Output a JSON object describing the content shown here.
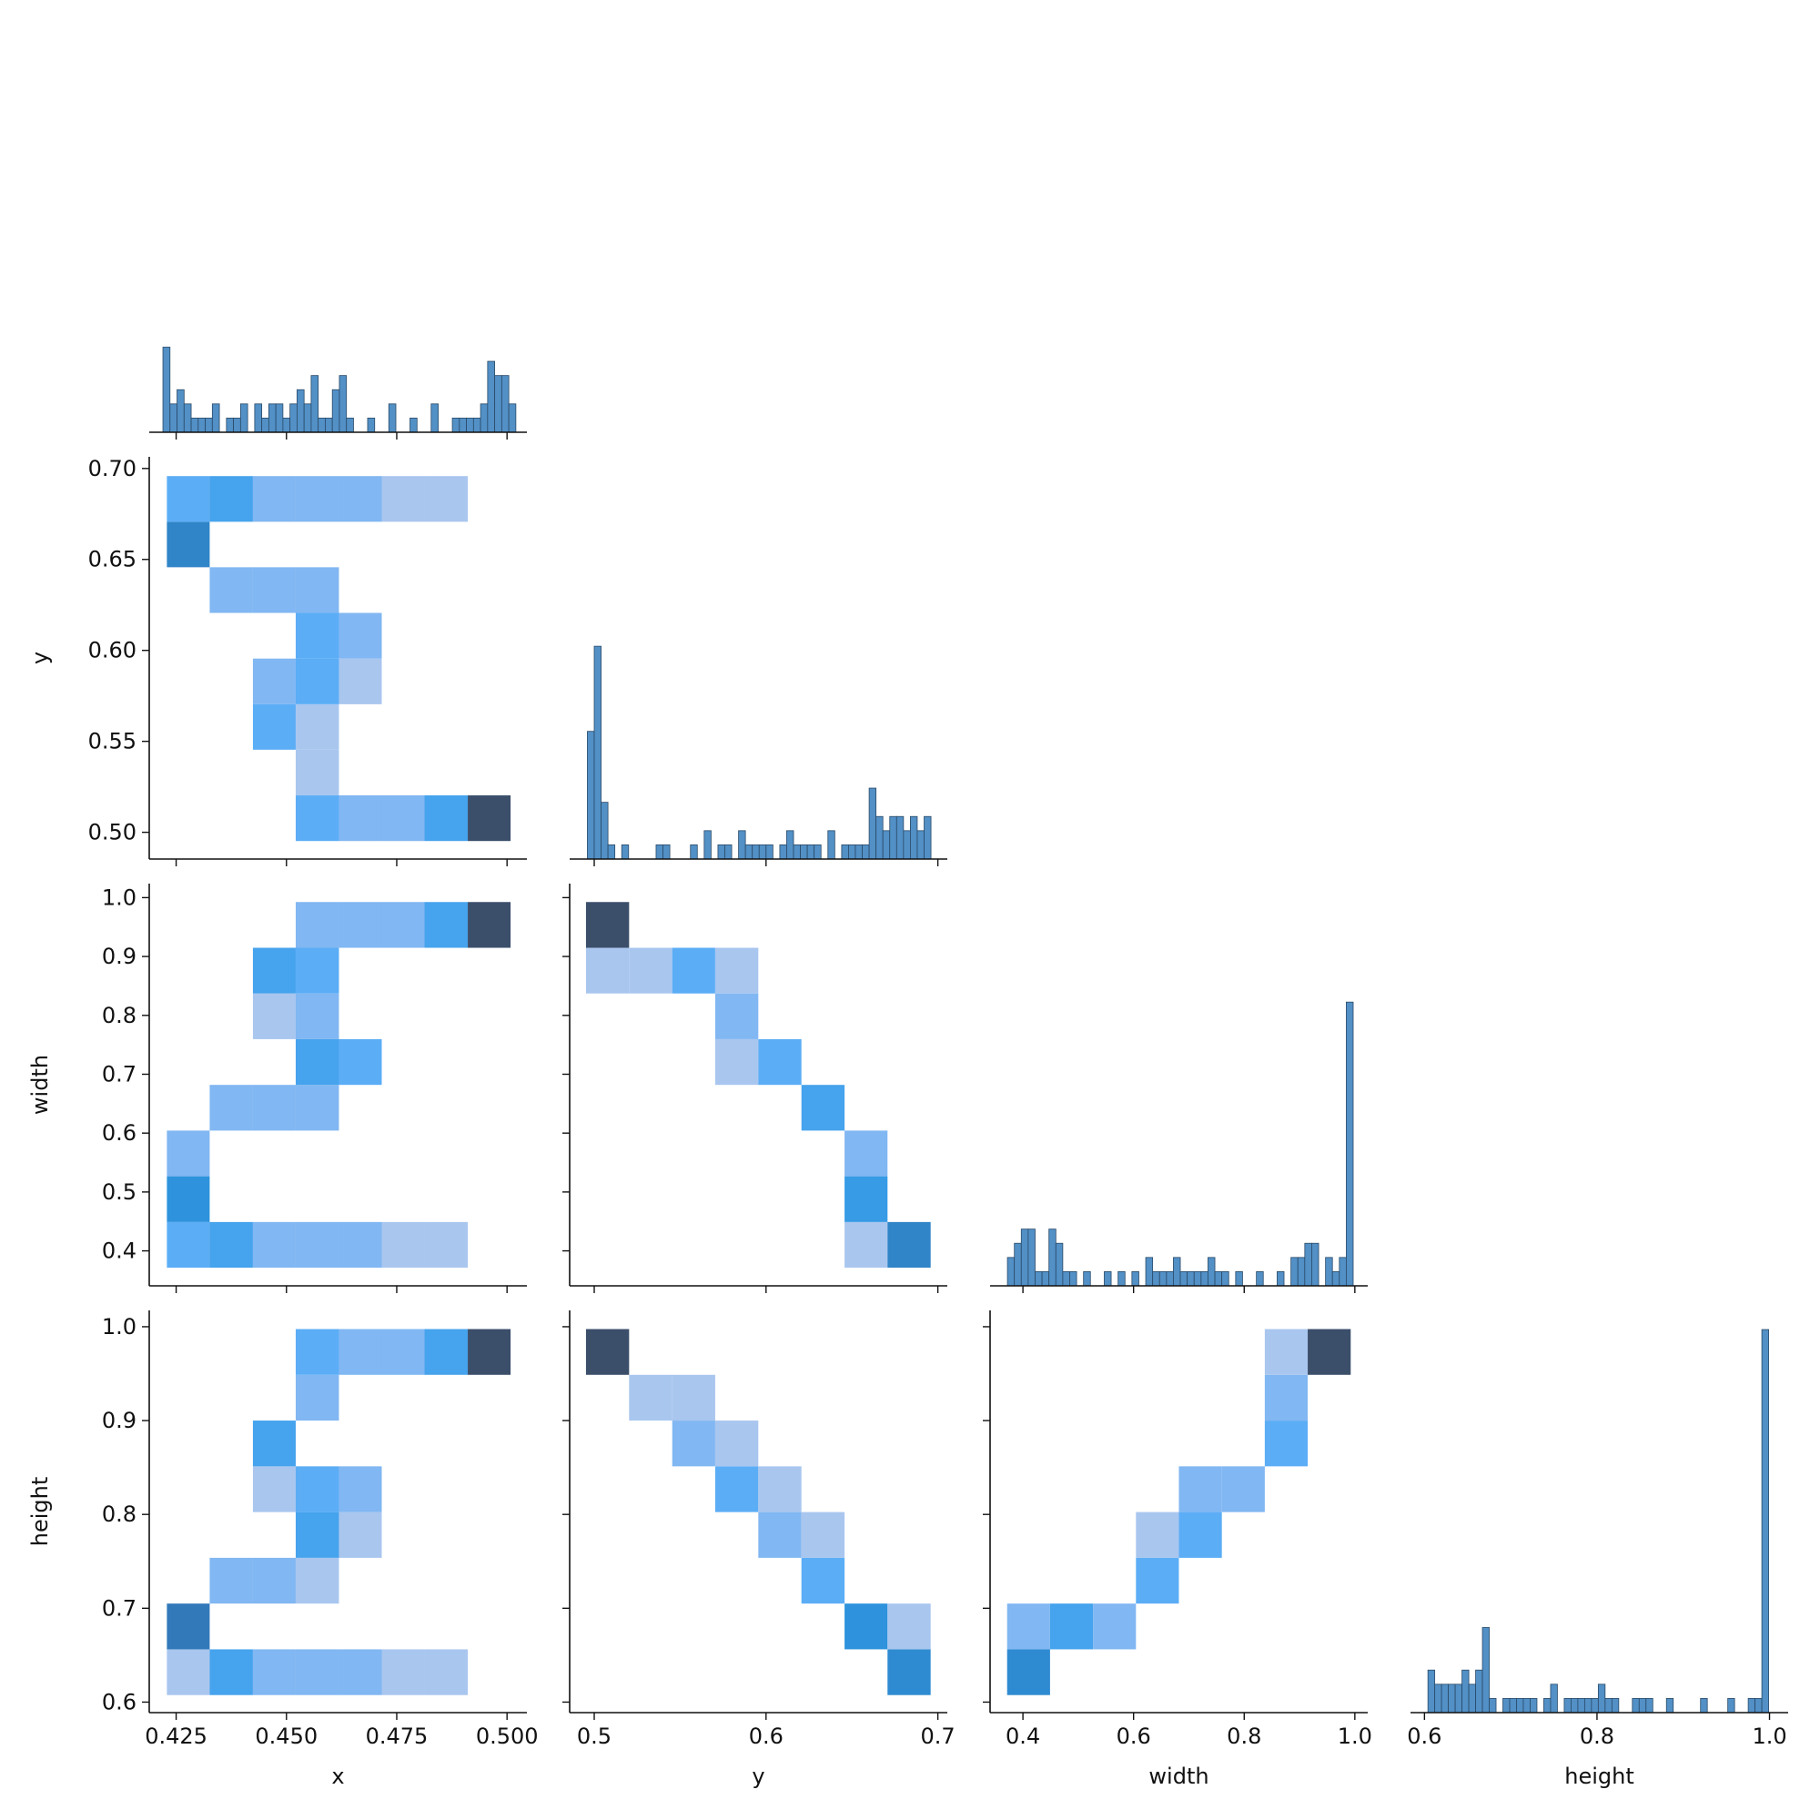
{
  "chart_data": [
    {
      "type": "histogram",
      "color": "#5290c6",
      "edgecolor": "#2a4a68",
      "bins": [
        0.422,
        0.4236,
        0.4252,
        0.4268,
        0.4284,
        0.43,
        0.4316,
        0.4332,
        0.4348,
        0.4364,
        0.438,
        0.4396,
        0.4412,
        0.4428,
        0.4444,
        0.446,
        0.4476,
        0.4492,
        0.4508,
        0.4524,
        0.454,
        0.4556,
        0.4572,
        0.4588,
        0.4604,
        0.462,
        0.4636,
        0.4652,
        0.4668,
        0.4684,
        0.47,
        0.4716,
        0.4732,
        0.4748,
        0.4764,
        0.478,
        0.4796,
        0.4812,
        0.4828,
        0.4844,
        0.486,
        0.4876,
        0.4892,
        0.4908,
        0.4924,
        0.494,
        0.4956,
        0.4972,
        0.4988,
        0.5004,
        0.502
      ],
      "counts": [
        6,
        2,
        3,
        2,
        1,
        1,
        1,
        2,
        0,
        1,
        1,
        2,
        0,
        2,
        1,
        2,
        2,
        1,
        2,
        3,
        2,
        4,
        1,
        1,
        3,
        4,
        1,
        0,
        0,
        1,
        0,
        0,
        2,
        0,
        0,
        1,
        0,
        0,
        2,
        0,
        0,
        1,
        1,
        1,
        1,
        2,
        5,
        4,
        4,
        2
      ],
      "xlim": [
        0.4189,
        0.5045
      ],
      "ylim": [
        0,
        28.35
      ],
      "xticks": [
        0.425,
        {
          "value": 0.45,
          "label": "0.450"
        },
        0.475,
        {
          "value": 0.5,
          "label": "0.500"
        }
      ]
    },
    {
      "type": "hist2d",
      "ylabel": "y",
      "color_scale": "log",
      "cmap": [
        "#a9c6ef",
        "#8cbaf1",
        "#56acf6",
        "#2e96e0",
        "#3279b8",
        "#3b4f6b"
      ],
      "xbins": [
        0.4229,
        0.4326,
        0.4424,
        0.4521,
        0.4619,
        0.4716,
        0.4813,
        0.4911,
        0.5008
      ],
      "ybins": [
        0.4952,
        0.5203,
        0.5454,
        0.5704,
        0.5955,
        0.6206,
        0.6457,
        0.6707,
        0.6958
      ],
      "counts": [
        [
          0,
          0,
          0,
          3,
          2,
          2,
          4,
          18
        ],
        [
          0,
          0,
          0,
          1,
          0,
          0,
          0,
          0
        ],
        [
          0,
          0,
          3,
          1,
          0,
          0,
          0,
          0
        ],
        [
          0,
          0,
          2,
          3,
          1,
          0,
          0,
          0
        ],
        [
          0,
          0,
          0,
          3,
          2,
          0,
          0,
          0
        ],
        [
          0,
          2,
          2,
          2,
          0,
          0,
          0,
          0
        ],
        [
          8,
          0,
          0,
          0,
          0,
          0,
          0,
          0
        ],
        [
          3,
          4,
          2,
          2,
          2,
          1,
          1,
          0
        ]
      ],
      "xlim": [
        0.4189,
        0.5045
      ],
      "ylim": [
        0.4853,
        0.7064
      ],
      "xticks": [
        0.425,
        {
          "value": 0.45,
          "label": "0.450"
        },
        0.475,
        {
          "value": 0.5,
          "label": "0.500"
        }
      ],
      "yticks": [
        {
          "value": 0.5,
          "label": "0.50"
        },
        0.55,
        {
          "value": 0.6,
          "label": "0.60"
        },
        0.65,
        {
          "value": 0.7,
          "label": "0.70"
        }
      ]
    },
    {
      "type": "histogram",
      "color": "#5290c6",
      "edgecolor": "#2a4a68",
      "bins": [
        0.496,
        0.5,
        0.504,
        0.508,
        0.512,
        0.516,
        0.52,
        0.524,
        0.528,
        0.532,
        0.536,
        0.54,
        0.544,
        0.548,
        0.552,
        0.556,
        0.56,
        0.564,
        0.568,
        0.572,
        0.576,
        0.58,
        0.584,
        0.588,
        0.592,
        0.596,
        0.6,
        0.604,
        0.608,
        0.612,
        0.616,
        0.62,
        0.624,
        0.628,
        0.632,
        0.636,
        0.64,
        0.644,
        0.648,
        0.652,
        0.656,
        0.66,
        0.664,
        0.668,
        0.672,
        0.676,
        0.68,
        0.684,
        0.688,
        0.692,
        0.696
      ],
      "counts": [
        9,
        15,
        4,
        1,
        0,
        1,
        0,
        0,
        0,
        0,
        1,
        1,
        0,
        0,
        0,
        1,
        0,
        2,
        0,
        1,
        1,
        0,
        2,
        1,
        1,
        1,
        1,
        0,
        1,
        2,
        1,
        1,
        1,
        1,
        0,
        2,
        0,
        1,
        1,
        1,
        1,
        5,
        3,
        2,
        3,
        3,
        2,
        3,
        2,
        3
      ],
      "xlim": [
        0.4857,
        0.7055
      ],
      "ylim": [
        0,
        28.35
      ],
      "xticks": [
        0.5,
        0.6,
        0.7
      ]
    },
    {
      "type": "hist2d",
      "ylabel": "width",
      "color_scale": "log",
      "cmap": [
        "#a9c6ef",
        "#8cbaf1",
        "#56acf6",
        "#2e96e0",
        "#3279b8",
        "#3b4f6b"
      ],
      "xbins": [
        0.4229,
        0.4326,
        0.4424,
        0.4521,
        0.4619,
        0.4716,
        0.4813,
        0.4911,
        0.5008
      ],
      "ybins": [
        0.3714,
        0.449,
        0.5267,
        0.6043,
        0.6819,
        0.7596,
        0.8372,
        0.9148,
        0.9925
      ],
      "counts": [
        [
          3,
          4,
          2,
          2,
          2,
          1,
          1,
          0
        ],
        [
          6,
          0,
          0,
          0,
          0,
          0,
          0,
          0
        ],
        [
          2,
          0,
          0,
          0,
          0,
          0,
          0,
          0
        ],
        [
          0,
          2,
          2,
          2,
          0,
          0,
          0,
          0
        ],
        [
          0,
          0,
          0,
          4,
          3,
          0,
          0,
          0
        ],
        [
          0,
          0,
          1,
          2,
          0,
          0,
          0,
          0
        ],
        [
          0,
          0,
          4,
          3,
          0,
          0,
          0,
          0
        ],
        [
          0,
          0,
          0,
          2,
          2,
          2,
          4,
          18
        ]
      ],
      "xlim": [
        0.4189,
        0.5045
      ],
      "ylim": [
        0.3406,
        1.0238
      ],
      "xticks": [
        0.425,
        {
          "value": 0.45,
          "label": "0.450"
        },
        0.475,
        {
          "value": 0.5,
          "label": "0.500"
        }
      ],
      "yticks": [
        0.4,
        0.5,
        0.6,
        0.7,
        0.8,
        0.9,
        {
          "value": 1,
          "label": "1.0"
        }
      ]
    },
    {
      "type": "hist2d",
      "color_scale": "log",
      "cmap": [
        "#a9c6ef",
        "#8cbaf1",
        "#56acf6",
        "#2e96e0",
        "#3279b8",
        "#3b4f6b"
      ],
      "xbins": [
        0.4952,
        0.5203,
        0.5454,
        0.5704,
        0.5955,
        0.6206,
        0.6457,
        0.6707,
        0.6958
      ],
      "ybins": [
        0.3714,
        0.449,
        0.5267,
        0.6043,
        0.6819,
        0.7596,
        0.8372,
        0.9148,
        0.9925
      ],
      "counts": [
        [
          0,
          0,
          0,
          0,
          0,
          0,
          1,
          8
        ],
        [
          0,
          0,
          0,
          0,
          0,
          0,
          5,
          0
        ],
        [
          0,
          0,
          0,
          0,
          0,
          0,
          2,
          0
        ],
        [
          0,
          0,
          0,
          0,
          0,
          4,
          0,
          0
        ],
        [
          0,
          0,
          0,
          1,
          3,
          0,
          0,
          0
        ],
        [
          0,
          0,
          0,
          2,
          0,
          0,
          0,
          0
        ],
        [
          1,
          1,
          3,
          1,
          0,
          0,
          0,
          0
        ],
        [
          18,
          0,
          0,
          0,
          0,
          0,
          0,
          0
        ]
      ],
      "xlim": [
        0.4857,
        0.7055
      ],
      "ylim": [
        0.3406,
        1.0238
      ],
      "xticks": [
        0.5,
        0.6,
        0.7
      ],
      "yticks": [
        0.4,
        0.5,
        0.6,
        0.7,
        0.8,
        0.9,
        {
          "value": 1,
          "label": "1.0"
        }
      ]
    },
    {
      "type": "histogram",
      "color": "#5290c6",
      "edgecolor": "#2a4a68",
      "bins": [
        0.372,
        0.3845,
        0.397,
        0.4095,
        0.422,
        0.4345,
        0.447,
        0.4595,
        0.472,
        0.4845,
        0.497,
        0.5095,
        0.522,
        0.5345,
        0.547,
        0.5595,
        0.572,
        0.5845,
        0.597,
        0.6095,
        0.622,
        0.6345,
        0.647,
        0.6595,
        0.672,
        0.6845,
        0.697,
        0.7095,
        0.722,
        0.7345,
        0.747,
        0.7595,
        0.772,
        0.7845,
        0.797,
        0.8095,
        0.822,
        0.8345,
        0.847,
        0.8595,
        0.872,
        0.8845,
        0.897,
        0.9095,
        0.922,
        0.9345,
        0.947,
        0.9595,
        0.972,
        0.9845,
        0.997
      ],
      "counts": [
        2,
        3,
        4,
        4,
        1,
        1,
        4,
        3,
        1,
        1,
        0,
        1,
        0,
        0,
        1,
        0,
        1,
        0,
        1,
        0,
        2,
        1,
        1,
        1,
        2,
        1,
        1,
        1,
        1,
        2,
        1,
        1,
        0,
        1,
        0,
        0,
        1,
        0,
        0,
        1,
        0,
        2,
        2,
        3,
        3,
        0,
        2,
        1,
        2,
        20
      ],
      "xlim": [
        0.3406,
        1.0233
      ],
      "ylim": [
        0,
        28.35
      ],
      "xticks": [
        0.4,
        0.6,
        0.8,
        {
          "value": 1,
          "label": "1.0"
        }
      ]
    },
    {
      "type": "hist2d",
      "xlabel": "x",
      "ylabel": "height",
      "color_scale": "log",
      "cmap": [
        "#a9c6ef",
        "#8cbaf1",
        "#56acf6",
        "#2e96e0",
        "#3279b8",
        "#3b4f6b"
      ],
      "xbins": [
        0.4229,
        0.4326,
        0.4424,
        0.4521,
        0.4619,
        0.4716,
        0.4813,
        0.4911,
        0.5008
      ],
      "ybins": [
        0.6075,
        0.65625,
        0.705,
        0.75375,
        0.8025,
        0.85125,
        0.9,
        0.94875,
        0.9975
      ],
      "counts": [
        [
          1,
          4,
          2,
          2,
          2,
          1,
          1,
          0
        ],
        [
          10,
          0,
          0,
          0,
          0,
          0,
          0,
          0
        ],
        [
          0,
          2,
          2,
          1,
          0,
          0,
          0,
          0
        ],
        [
          0,
          0,
          0,
          4,
          1,
          0,
          0,
          0
        ],
        [
          0,
          0,
          1,
          3,
          2,
          0,
          0,
          0
        ],
        [
          0,
          0,
          4,
          0,
          0,
          0,
          0,
          0
        ],
        [
          0,
          0,
          0,
          2,
          0,
          0,
          0,
          0
        ],
        [
          0,
          0,
          0,
          3,
          2,
          2,
          4,
          18
        ]
      ],
      "xlim": [
        0.4189,
        0.5045
      ],
      "ylim": [
        0.5888,
        1.0174
      ],
      "xticks": [
        0.425,
        {
          "value": 0.45,
          "label": "0.450"
        },
        0.475,
        {
          "value": 0.5,
          "label": "0.500"
        }
      ],
      "yticks": [
        0.6,
        0.7,
        0.8,
        0.9,
        {
          "value": 1,
          "label": "1.0"
        }
      ]
    },
    {
      "type": "hist2d",
      "xlabel": "y",
      "color_scale": "log",
      "cmap": [
        "#a9c6ef",
        "#8cbaf1",
        "#56acf6",
        "#2e96e0",
        "#3279b8",
        "#3b4f6b"
      ],
      "xbins": [
        0.4952,
        0.5203,
        0.5454,
        0.5704,
        0.5955,
        0.6206,
        0.6457,
        0.6707,
        0.6958
      ],
      "ybins": [
        0.6075,
        0.65625,
        0.705,
        0.75375,
        0.8025,
        0.85125,
        0.9,
        0.94875,
        0.9975
      ],
      "counts": [
        [
          0,
          0,
          0,
          0,
          0,
          0,
          0,
          7
        ],
        [
          0,
          0,
          0,
          0,
          0,
          0,
          6,
          1
        ],
        [
          0,
          0,
          0,
          0,
          0,
          3,
          0,
          0
        ],
        [
          0,
          0,
          0,
          0,
          2,
          1,
          0,
          0
        ],
        [
          0,
          0,
          0,
          3,
          1,
          0,
          0,
          0
        ],
        [
          0,
          0,
          2,
          1,
          0,
          0,
          0,
          0
        ],
        [
          0,
          1,
          1,
          0,
          0,
          0,
          0,
          0
        ],
        [
          18,
          0,
          0,
          0,
          0,
          0,
          0,
          0
        ]
      ],
      "xlim": [
        0.4857,
        0.7055
      ],
      "ylim": [
        0.5888,
        1.0174
      ],
      "xticks": [
        0.5,
        0.6,
        0.7
      ],
      "yticks": [
        0.6,
        0.7,
        0.8,
        0.9,
        {
          "value": 1,
          "label": "1.0"
        }
      ]
    },
    {
      "type": "hist2d",
      "xlabel": "width",
      "color_scale": "log",
      "cmap": [
        "#a9c6ef",
        "#8cbaf1",
        "#56acf6",
        "#2e96e0",
        "#3279b8",
        "#3b4f6b"
      ],
      "xbins": [
        0.3714,
        0.449,
        0.5267,
        0.6043,
        0.6819,
        0.7596,
        0.8372,
        0.9148,
        0.9925
      ],
      "ybins": [
        0.6075,
        0.65625,
        0.705,
        0.75375,
        0.8025,
        0.85125,
        0.9,
        0.94875,
        0.9975
      ],
      "counts": [
        [
          7,
          0,
          0,
          0,
          0,
          0,
          0,
          0
        ],
        [
          2,
          4,
          2,
          0,
          0,
          0,
          0,
          0
        ],
        [
          0,
          0,
          0,
          3,
          0,
          0,
          0,
          0
        ],
        [
          0,
          0,
          0,
          1,
          3,
          0,
          0,
          0
        ],
        [
          0,
          0,
          0,
          0,
          2,
          2,
          0,
          0
        ],
        [
          0,
          0,
          0,
          0,
          0,
          0,
          3,
          0
        ],
        [
          0,
          0,
          0,
          0,
          0,
          0,
          2,
          0
        ],
        [
          0,
          0,
          0,
          0,
          0,
          0,
          1,
          18
        ]
      ],
      "xlim": [
        0.3406,
        1.0233
      ],
      "ylim": [
        0.5888,
        1.0174
      ],
      "xticks": [
        0.4,
        0.6,
        0.8,
        {
          "value": 1,
          "label": "1.0"
        }
      ],
      "yticks": [
        0.6,
        0.7,
        0.8,
        0.9,
        {
          "value": 1,
          "label": "1.0"
        }
      ]
    },
    {
      "type": "histogram",
      "xlabel": "height",
      "color": "#5290c6",
      "edgecolor": "#2a4a68",
      "bins": [
        0.604,
        0.6119,
        0.6198,
        0.6277,
        0.6356,
        0.6435,
        0.6514,
        0.6593,
        0.6672,
        0.6751,
        0.683,
        0.6909,
        0.6988,
        0.7067,
        0.7146,
        0.7225,
        0.7304,
        0.7383,
        0.7462,
        0.7541,
        0.762,
        0.7699,
        0.7778,
        0.7857,
        0.7936,
        0.8015,
        0.8094,
        0.8173,
        0.8252,
        0.8331,
        0.841,
        0.8489,
        0.8568,
        0.8647,
        0.8726,
        0.8805,
        0.8884,
        0.8963,
        0.9042,
        0.9121,
        0.92,
        0.9279,
        0.9358,
        0.9437,
        0.9516,
        0.9595,
        0.9674,
        0.9753,
        0.9832,
        0.9911,
        0.999
      ],
      "counts": [
        3,
        2,
        2,
        2,
        2,
        3,
        2,
        3,
        6,
        1,
        0,
        1,
        1,
        1,
        1,
        1,
        0,
        1,
        2,
        0,
        1,
        1,
        1,
        1,
        1,
        2,
        1,
        1,
        0,
        0,
        1,
        1,
        1,
        0,
        0,
        1,
        0,
        0,
        0,
        0,
        1,
        0,
        0,
        0,
        1,
        0,
        0,
        1,
        1,
        27
      ],
      "xlim": [
        0.5838,
        1.0216
      ],
      "ylim": [
        0,
        28.35
      ],
      "xticks": [
        0.6,
        0.8,
        {
          "value": 1,
          "label": "1.0"
        }
      ]
    }
  ]
}
